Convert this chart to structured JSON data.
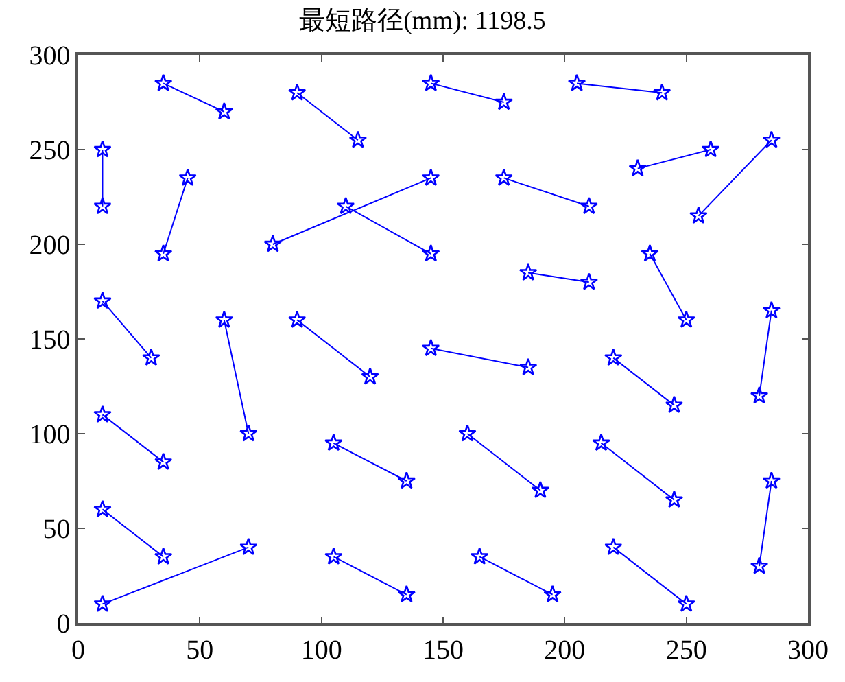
{
  "chart_data": {
    "type": "line",
    "title": "最短路径(mm): 1198.5",
    "series": [
      {
        "color": "#0000ff",
        "x": [
          10,
          10
        ],
        "values": [
          250,
          220
        ]
      },
      {
        "color": "#0000ff",
        "x": [
          35,
          60
        ],
        "values": [
          285,
          270
        ]
      },
      {
        "color": "#0000ff",
        "x": [
          90,
          115
        ],
        "values": [
          280,
          255
        ]
      },
      {
        "color": "#0000ff",
        "x": [
          145,
          175
        ],
        "values": [
          285,
          275
        ]
      },
      {
        "color": "#0000ff",
        "x": [
          205,
          240
        ],
        "values": [
          285,
          280
        ]
      },
      {
        "color": "#0000ff",
        "x": [
          35,
          45
        ],
        "values": [
          195,
          235
        ]
      },
      {
        "color": "#0000ff",
        "x": [
          80,
          145
        ],
        "values": [
          200,
          235
        ]
      },
      {
        "color": "#0000ff",
        "x": [
          110,
          145
        ],
        "values": [
          220,
          195
        ]
      },
      {
        "color": "#0000ff",
        "x": [
          175,
          210
        ],
        "values": [
          235,
          220
        ]
      },
      {
        "color": "#0000ff",
        "x": [
          230,
          260
        ],
        "values": [
          240,
          250
        ]
      },
      {
        "color": "#0000ff",
        "x": [
          255,
          285
        ],
        "values": [
          215,
          255
        ]
      },
      {
        "color": "#0000ff",
        "x": [
          185,
          210
        ],
        "values": [
          185,
          180
        ]
      },
      {
        "color": "#0000ff",
        "x": [
          235,
          250
        ],
        "values": [
          195,
          160
        ]
      },
      {
        "color": "#0000ff",
        "x": [
          10,
          30
        ],
        "values": [
          170,
          140
        ]
      },
      {
        "color": "#0000ff",
        "x": [
          60,
          70
        ],
        "values": [
          160,
          100
        ]
      },
      {
        "color": "#0000ff",
        "x": [
          90,
          120
        ],
        "values": [
          160,
          130
        ]
      },
      {
        "color": "#0000ff",
        "x": [
          145,
          185
        ],
        "values": [
          145,
          135
        ]
      },
      {
        "color": "#0000ff",
        "x": [
          220,
          245
        ],
        "values": [
          140,
          115
        ]
      },
      {
        "color": "#0000ff",
        "x": [
          280,
          285
        ],
        "values": [
          120,
          165
        ]
      },
      {
        "color": "#0000ff",
        "x": [
          10,
          35
        ],
        "values": [
          110,
          85
        ]
      },
      {
        "color": "#0000ff",
        "x": [
          105,
          135
        ],
        "values": [
          95,
          75
        ]
      },
      {
        "color": "#0000ff",
        "x": [
          160,
          190
        ],
        "values": [
          100,
          70
        ]
      },
      {
        "color": "#0000ff",
        "x": [
          215,
          245
        ],
        "values": [
          95,
          65
        ]
      },
      {
        "color": "#0000ff",
        "x": [
          280,
          285
        ],
        "values": [
          30,
          75
        ]
      },
      {
        "color": "#0000ff",
        "x": [
          10,
          35
        ],
        "values": [
          60,
          35
        ]
      },
      {
        "color": "#0000ff",
        "x": [
          10,
          70
        ],
        "values": [
          10,
          40
        ]
      },
      {
        "color": "#0000ff",
        "x": [
          105,
          135
        ],
        "values": [
          35,
          15
        ]
      },
      {
        "color": "#0000ff",
        "x": [
          165,
          195
        ],
        "values": [
          35,
          15
        ]
      },
      {
        "color": "#0000ff",
        "x": [
          220,
          250
        ],
        "values": [
          40,
          10
        ]
      }
    ],
    "xlim": [
      0,
      300
    ],
    "xticks": [
      0,
      50,
      100,
      150,
      200,
      250,
      300
    ],
    "ylim": [
      0,
      300
    ],
    "yticks": [
      0,
      50,
      100,
      150,
      200,
      250,
      300
    ],
    "marker": "star",
    "line_style": "solid"
  }
}
